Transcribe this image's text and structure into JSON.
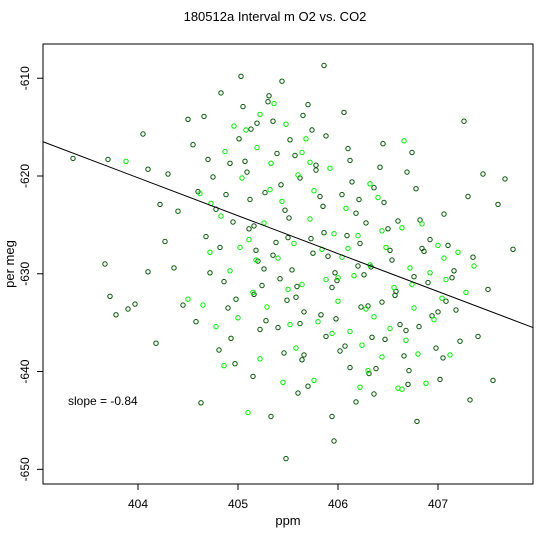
{
  "chart_data": {
    "type": "scatter",
    "title": "180512a   Interval m O2 vs. CO2",
    "xlabel": "ppm",
    "ylabel": "per meg",
    "xlim": [
      403.05,
      407.95
    ],
    "ylim": [
      -651.5,
      -606.5
    ],
    "xticks": [
      404,
      405,
      406,
      407
    ],
    "yticks": [
      -610,
      -620,
      -630,
      -640,
      -650
    ],
    "grid": false,
    "annotation": "slope =  -0.84",
    "fit_line": {
      "slope": -0.84,
      "x": [
        403.05,
        407.95
      ],
      "y": [
        -616.5,
        -635.5
      ]
    },
    "series": [
      {
        "color": "#005500",
        "points": [
          [
            403.35,
            -618.2
          ],
          [
            403.7,
            -618.3
          ],
          [
            403.67,
            -629
          ],
          [
            403.72,
            -632.3
          ],
          [
            403.78,
            -634.2
          ],
          [
            403.9,
            -633.6
          ],
          [
            403.97,
            -633.1
          ],
          [
            404.05,
            -615.7
          ],
          [
            404.1,
            -619.3
          ],
          [
            404.1,
            -629.8
          ],
          [
            404.18,
            -637.1
          ],
          [
            404.22,
            -622.9
          ],
          [
            404.27,
            -626.7
          ],
          [
            404.3,
            -619.8
          ],
          [
            404.36,
            -629.4
          ],
          [
            404.4,
            -623.6
          ],
          [
            404.45,
            -633.2
          ],
          [
            404.5,
            -614.2
          ],
          [
            404.55,
            -616.8
          ],
          [
            404.6,
            -621.6
          ],
          [
            404.66,
            -613.9
          ],
          [
            404.7,
            -618.3
          ],
          [
            404.75,
            -620.1
          ],
          [
            404.78,
            -623.4
          ],
          [
            404.82,
            -627.3
          ],
          [
            404.86,
            -630.8
          ],
          [
            404.9,
            -633.5
          ],
          [
            404.93,
            -636.6
          ],
          [
            404.97,
            -639.2
          ],
          [
            405.01,
            -616.2
          ],
          [
            405.05,
            -612.9
          ],
          [
            405.09,
            -619.6
          ],
          [
            405.12,
            -622.4
          ],
          [
            405.16,
            -625.1
          ],
          [
            405.2,
            -628.7
          ],
          [
            405.24,
            -631.2
          ],
          [
            405.28,
            -634.8
          ],
          [
            405.31,
            -611.8
          ],
          [
            405.35,
            -614.4
          ],
          [
            405.39,
            -617.7
          ],
          [
            405.43,
            -620.9
          ],
          [
            405.47,
            -623.5
          ],
          [
            405.5,
            -626.3
          ],
          [
            405.54,
            -629.6
          ],
          [
            405.58,
            -632.4
          ],
          [
            405.62,
            -635.1
          ],
          [
            405.66,
            -638.3
          ],
          [
            405.7,
            -612.7
          ],
          [
            405.74,
            -615.3
          ],
          [
            405.78,
            -618.9
          ],
          [
            405.82,
            -622.1
          ],
          [
            405.86,
            -625.8
          ],
          [
            405.9,
            -628.2
          ],
          [
            405.94,
            -631.4
          ],
          [
            405.98,
            -634.6
          ],
          [
            406.02,
            -637.9
          ],
          [
            406.06,
            -613.5
          ],
          [
            406.1,
            -617.2
          ],
          [
            406.14,
            -620.6
          ],
          [
            406.18,
            -623.8
          ],
          [
            406.22,
            -626.9
          ],
          [
            406.26,
            -630.1
          ],
          [
            406.3,
            -633.3
          ],
          [
            406.34,
            -636.5
          ],
          [
            406.38,
            -639.7
          ],
          [
            406.42,
            -619.1
          ],
          [
            406.46,
            -622.7
          ],
          [
            406.5,
            -625.4
          ],
          [
            406.54,
            -628.6
          ],
          [
            406.58,
            -631.8
          ],
          [
            406.62,
            -635.2
          ],
          [
            406.66,
            -638.4
          ],
          [
            406.7,
            -641.3
          ],
          [
            406.74,
            -617.6
          ],
          [
            406.78,
            -621.3
          ],
          [
            406.82,
            -624.5
          ],
          [
            406.86,
            -627.7
          ],
          [
            406.9,
            -630.9
          ],
          [
            406.94,
            -634.3
          ],
          [
            406.98,
            -637.6
          ],
          [
            407.02,
            -640.8
          ],
          [
            407.06,
            -623.9
          ],
          [
            407.1,
            -627.1
          ],
          [
            407.14,
            -630.4
          ],
          [
            407.18,
            -633.7
          ],
          [
            407.22,
            -636.9
          ],
          [
            407.26,
            -614.4
          ],
          [
            407.3,
            -622.1
          ],
          [
            407.35,
            -628.3
          ],
          [
            407.4,
            -636.4
          ],
          [
            407.45,
            -619.8
          ],
          [
            407.5,
            -631.6
          ],
          [
            407.55,
            -640.9
          ],
          [
            407.6,
            -622.9
          ],
          [
            407.67,
            -620.3
          ],
          [
            407.75,
            -627.5
          ],
          [
            405.03,
            -609.8
          ],
          [
            405.3,
            -612.4
          ],
          [
            405.86,
            -608.7
          ],
          [
            405.57,
            -617.9
          ],
          [
            405.33,
            -644.6
          ],
          [
            405.48,
            -648.9
          ],
          [
            405.96,
            -647.1
          ],
          [
            404.63,
            -643.2
          ],
          [
            405.15,
            -640.5
          ],
          [
            405.6,
            -642.2
          ],
          [
            406.18,
            -643.1
          ],
          [
            406.79,
            -645.1
          ],
          [
            407.32,
            -642.9
          ],
          [
            404.83,
            -611.5
          ],
          [
            405.44,
            -610.3
          ],
          [
            405.65,
            -613.8
          ],
          [
            404.95,
            -624.7
          ],
          [
            405.18,
            -627.6
          ],
          [
            405.42,
            -630.5
          ],
          [
            405.66,
            -633.9
          ],
          [
            405.88,
            -636.4
          ],
          [
            406.12,
            -639.6
          ],
          [
            406.36,
            -642.3
          ],
          [
            404.72,
            -629.9
          ],
          [
            404.98,
            -632.6
          ],
          [
            405.22,
            -635.7
          ],
          [
            405.46,
            -638.1
          ],
          [
            405.7,
            -641.5
          ],
          [
            405.94,
            -644.6
          ],
          [
            406.2,
            -629.2
          ],
          [
            406.44,
            -632.9
          ],
          [
            406.68,
            -635.8
          ],
          [
            406.92,
            -626.5
          ],
          [
            407.16,
            -629.7
          ],
          [
            404.58,
            -634.9
          ],
          [
            404.81,
            -637.8
          ],
          [
            405.07,
            -618.5
          ],
          [
            405.27,
            -621.7
          ],
          [
            405.51,
            -624.3
          ],
          [
            405.75,
            -627.9
          ],
          [
            405.99,
            -630.7
          ],
          [
            406.23,
            -633.4
          ],
          [
            406.47,
            -636.7
          ],
          [
            406.71,
            -639.9
          ],
          [
            405.13,
            -615.2
          ],
          [
            405.38,
            -626.8
          ],
          [
            405.62,
            -620.2
          ],
          [
            405.85,
            -623.1
          ],
          [
            406.09,
            -626.1
          ],
          [
            406.33,
            -629.3
          ],
          [
            406.57,
            -632.2
          ],
          [
            406.81,
            -635.4
          ],
          [
            407.05,
            -638.6
          ],
          [
            404.88,
            -621.9
          ],
          [
            405.11,
            -625.4
          ],
          [
            405.35,
            -628.1
          ],
          [
            405.59,
            -631.3
          ],
          [
            405.83,
            -634.2
          ],
          [
            406.07,
            -637.4
          ],
          [
            406.31,
            -640.2
          ],
          [
            404.68,
            -626.2
          ],
          [
            404.92,
            -618.7
          ],
          [
            405.16,
            -632.1
          ],
          [
            405.4,
            -635.5
          ],
          [
            405.64,
            -638.8
          ],
          [
            405.88,
            -615.9
          ],
          [
            406.12,
            -618.4
          ],
          [
            406.36,
            -621.2
          ],
          [
            406.6,
            -624.6
          ],
          [
            406.84,
            -627.4
          ],
          [
            407.08,
            -632.8
          ],
          [
            405.19,
            -614.6
          ],
          [
            405.52,
            -616.3
          ],
          [
            405.78,
            -619.4
          ],
          [
            406.04,
            -621.9
          ],
          [
            406.28,
            -624.8
          ],
          [
            406.52,
            -627.6
          ],
          [
            406.76,
            -630.3
          ],
          [
            407.0,
            -633.9
          ],
          [
            405.26,
            -629.5
          ],
          [
            405.49,
            -632.7
          ],
          [
            405.73,
            -626.4
          ],
          [
            405.97,
            -629.9
          ],
          [
            406.21,
            -622.4
          ],
          [
            406.45,
            -616.7
          ],
          [
            406.69,
            -619.6
          ]
        ]
      },
      {
        "color": "#00ee00",
        "points": [
          [
            403.88,
            -618.5
          ],
          [
            404.5,
            -632.6
          ],
          [
            404.62,
            -621.8
          ],
          [
            404.65,
            -633.2
          ],
          [
            404.72,
            -627.8
          ],
          [
            404.78,
            -635.4
          ],
          [
            404.83,
            -624.1
          ],
          [
            404.87,
            -617.5
          ],
          [
            404.92,
            -629.7
          ],
          [
            404.96,
            -614.9
          ],
          [
            405.0,
            -634.5
          ],
          [
            405.04,
            -620.2
          ],
          [
            405.08,
            -615.3
          ],
          [
            405.11,
            -626.5
          ],
          [
            405.15,
            -631.9
          ],
          [
            405.19,
            -617.1
          ],
          [
            405.22,
            -613.7
          ],
          [
            405.26,
            -624.8
          ],
          [
            405.29,
            -633.4
          ],
          [
            405.33,
            -618.7
          ],
          [
            405.36,
            -612.6
          ],
          [
            405.4,
            -628.4
          ],
          [
            405.44,
            -622.6
          ],
          [
            405.48,
            -614.7
          ],
          [
            405.52,
            -635.2
          ],
          [
            405.56,
            -626.9
          ],
          [
            405.6,
            -619.9
          ],
          [
            405.64,
            -631.1
          ],
          [
            405.68,
            -616.2
          ],
          [
            405.72,
            -624.4
          ],
          [
            405.76,
            -621.5
          ],
          [
            405.8,
            -634.9
          ],
          [
            405.84,
            -627.5
          ],
          [
            405.88,
            -630.6
          ],
          [
            405.92,
            -619.2
          ],
          [
            405.96,
            -625.9
          ],
          [
            406.0,
            -632.8
          ],
          [
            406.04,
            -628.3
          ],
          [
            406.08,
            -623.3
          ],
          [
            406.12,
            -635.9
          ],
          [
            406.16,
            -630.2
          ],
          [
            406.2,
            -626.1
          ],
          [
            406.24,
            -637.3
          ],
          [
            406.28,
            -633.6
          ],
          [
            406.32,
            -629.1
          ],
          [
            406.36,
            -634.4
          ],
          [
            406.4,
            -622.2
          ],
          [
            406.44,
            -638.5
          ],
          [
            406.48,
            -627.3
          ],
          [
            406.52,
            -635.6
          ],
          [
            406.56,
            -631.4
          ],
          [
            406.6,
            -641.7
          ],
          [
            406.64,
            -625.3
          ],
          [
            406.68,
            -636.8
          ],
          [
            406.72,
            -629.4
          ],
          [
            406.76,
            -633.5
          ],
          [
            406.8,
            -638.2
          ],
          [
            406.84,
            -624.9
          ],
          [
            406.88,
            -641.2
          ],
          [
            406.92,
            -629.9
          ],
          [
            406.96,
            -634.7
          ],
          [
            407.0,
            -627.1
          ],
          [
            407.04,
            -632.5
          ],
          [
            407.08,
            -630.6
          ],
          [
            407.12,
            -638.3
          ],
          [
            407.2,
            -627.8
          ],
          [
            407.28,
            -631.9
          ],
          [
            407.36,
            -629.2
          ],
          [
            405.1,
            -644.2
          ],
          [
            405.45,
            -641.1
          ],
          [
            405.76,
            -640.9
          ],
          [
            406.22,
            -641.6
          ],
          [
            406.64,
            -641.8
          ],
          [
            404.86,
            -639.4
          ],
          [
            405.22,
            -638.7
          ],
          [
            405.58,
            -637.6
          ],
          [
            405.94,
            -636.1
          ],
          [
            406.3,
            -639.9
          ],
          [
            404.73,
            -622.8
          ],
          [
            405.02,
            -627.3
          ],
          [
            405.32,
            -621.4
          ],
          [
            405.5,
            -631.6
          ],
          [
            405.72,
            -618.6
          ],
          [
            406.1,
            -627.4
          ],
          [
            406.44,
            -625.6
          ],
          [
            406.74,
            -631.1
          ],
          [
            407.06,
            -628.4
          ],
          [
            405.18,
            -628.6
          ],
          [
            405.64,
            -617.6
          ],
          [
            406.0,
            -630.4
          ],
          [
            406.32,
            -620.8
          ],
          [
            406.66,
            -616.4
          ]
        ]
      }
    ]
  }
}
